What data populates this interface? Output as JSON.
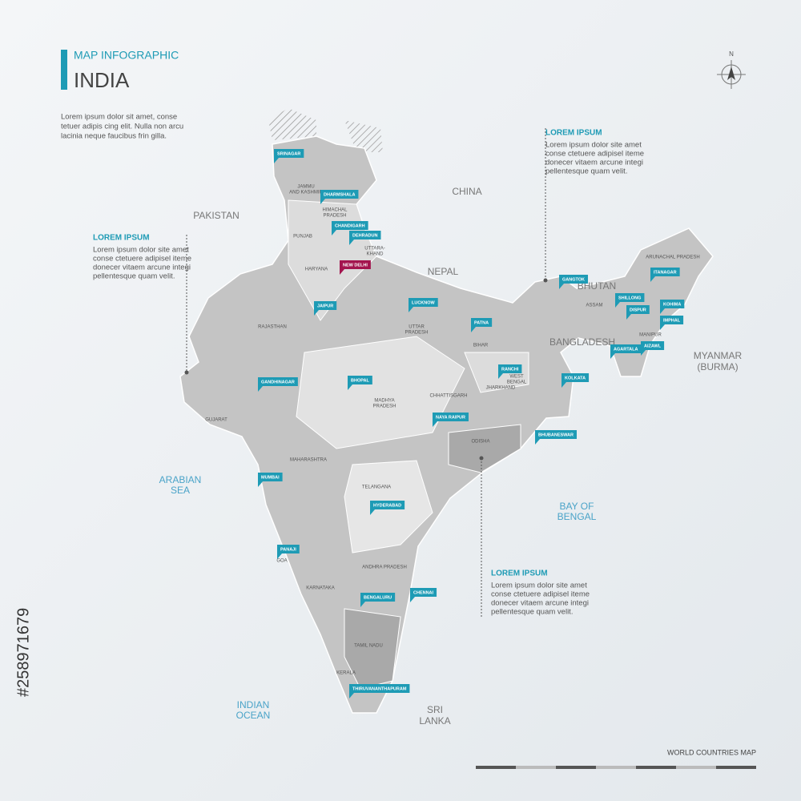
{
  "header": {
    "subtitle": "MAP INFOGRAPHIC",
    "title": "INDIA",
    "intro": [
      "Lorem ipsum dolor sit amet, conse",
      "tetuer adipis cing elit. Nulla non arcu",
      "lacinia neque faucibus frin gilla."
    ]
  },
  "compass": "N",
  "callouts": [
    {
      "title": "LOREM IPSUM",
      "text": [
        "Lorem ipsum dolor site amet",
        "conse ctetuere adipisel iteme",
        "donecer vitaem arcune integi",
        "pellentesque quam velit."
      ]
    },
    {
      "title": "LOREM IPSUM",
      "text": [
        "Lorem ipsum dolor site amet",
        "conse ctetuere adipisel iteme",
        "donecer vitaem arcune integi",
        "pellentesque quam velit."
      ]
    },
    {
      "title": "LOREM IPSUM",
      "text": [
        "Lorem ipsum dolor site amet",
        "conse ctetuere adipisel iteme",
        "donecer vitaem arcune integi",
        "pellentesque quam velit."
      ]
    }
  ],
  "neighbors": [
    [
      "PAKISTAN"
    ],
    [
      "CHINA"
    ],
    [
      "NEPAL"
    ],
    [
      "BHUTAN"
    ],
    [
      "BANGLADESH"
    ],
    [
      "MYANMAR",
      "(BURMA)"
    ],
    [
      "SRI",
      "LANKA"
    ]
  ],
  "seas": [
    [
      "ARABIAN",
      "SEA"
    ],
    [
      "BAY OF",
      "BENGAL"
    ],
    [
      "INDIAN",
      "OCEAN"
    ]
  ],
  "states": [
    [
      "JAMMU",
      "AND KASHMIR"
    ],
    [
      "HIMACHAL",
      "PRADESH"
    ],
    [
      "PUNJAB"
    ],
    [
      "UTTARA-",
      "KHAND"
    ],
    [
      "HARYANA"
    ],
    [
      "RAJASTHAN"
    ],
    [
      "UTTAR",
      "PRADESH"
    ],
    [
      "BIHAR"
    ],
    [
      "GUJARAT"
    ],
    [
      "MADHYA",
      "PRADESH"
    ],
    [
      "CHHATTISGARH"
    ],
    [
      "JHARKHAND"
    ],
    [
      "WEST",
      "BENGAL"
    ],
    [
      "ODISHA"
    ],
    [
      "MAHARASHTRA"
    ],
    [
      "TELANGANA"
    ],
    [
      "ANDHRA PRADESH"
    ],
    [
      "KARNATAKA"
    ],
    [
      "GOA"
    ],
    [
      "TAMIL NADU"
    ],
    [
      "KERALA"
    ],
    [
      "ASSAM"
    ],
    [
      "ARUNACHAL PRADESH"
    ],
    [
      "MANIPUR"
    ]
  ],
  "cities": [
    "SRINAGAR",
    "DHARMSHALA",
    "CHANDIGARH",
    "DEHRADUN",
    "NEW DELHI",
    "JAIPUR",
    "LUCKNOW",
    "PATNA",
    "GANGTOK",
    "SHILLONG",
    "ITANAGAR",
    "DISPUR",
    "KOHIMA",
    "IMPHAL",
    "AGARTALA",
    "AIZAWL",
    "RANCHI",
    "KOLKATA",
    "GANDHINAGAR",
    "BHOPAL",
    "NAYA RAIPUR",
    "BHUBANESWAR",
    "MUMBAI",
    "HYDERABAD",
    "PANAJI",
    "BENGALURU",
    "CHENNAI",
    "THIRUVANANTHAPURAM"
  ],
  "footer": "WORLD COUNTRIES MAP",
  "stock_id": "#258971679"
}
